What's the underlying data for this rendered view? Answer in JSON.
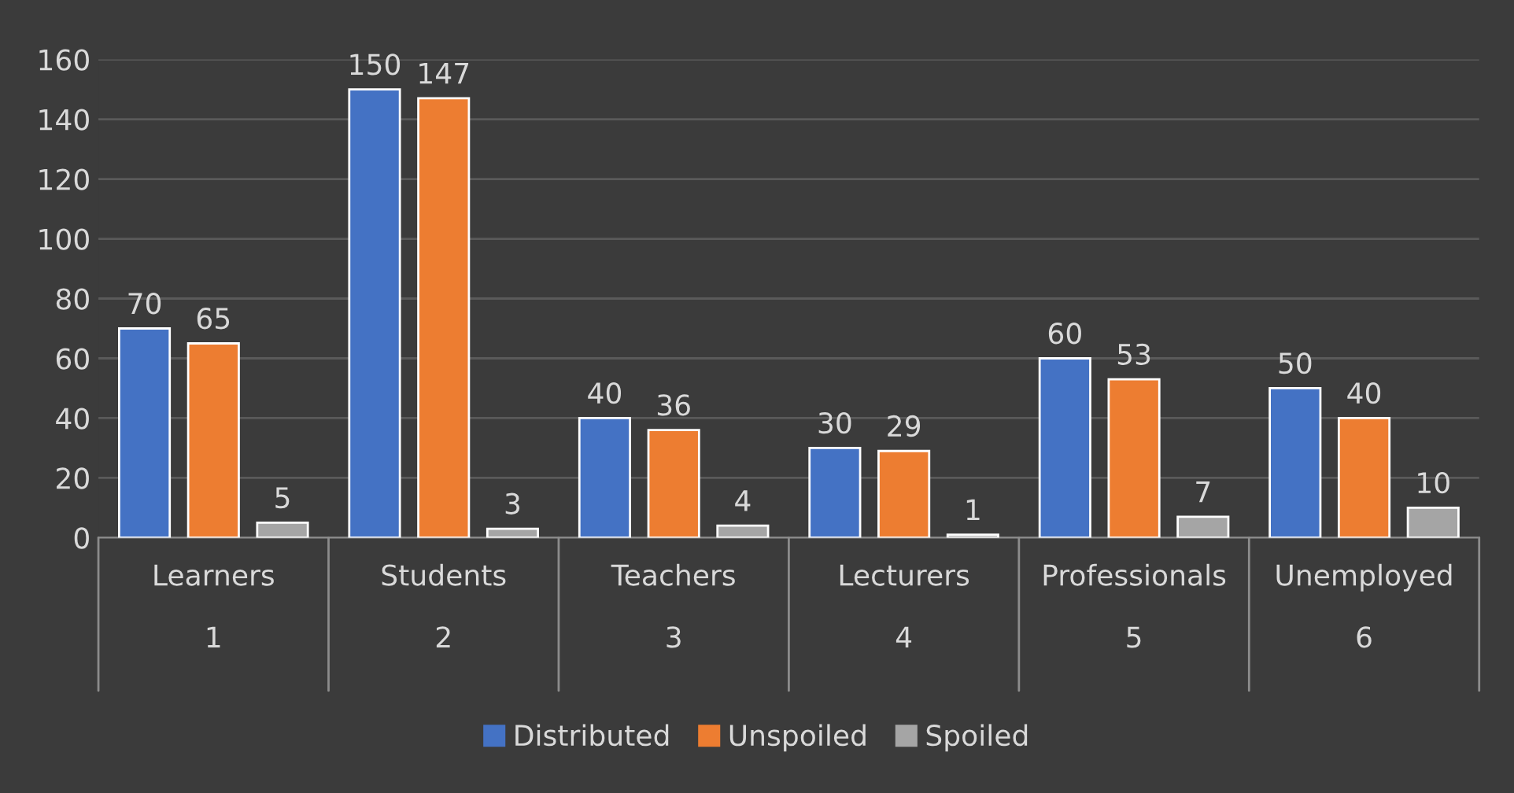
{
  "chart_data": {
    "type": "bar",
    "categories": [
      "Learners\n1",
      "Students\n2",
      "Teachers\n3",
      "Lecturers\n4",
      "Professionals\n5",
      "Unemployed\n6"
    ],
    "series": [
      {
        "name": "Distributed",
        "color": "#4472c4",
        "values": [
          70,
          150,
          40,
          30,
          60,
          50
        ]
      },
      {
        "name": "Unspoiled",
        "color": "#ed7d31",
        "values": [
          65,
          147,
          36,
          29,
          53,
          40
        ]
      },
      {
        "name": "Spoiled",
        "color": "#a5a5a5",
        "values": [
          5,
          3,
          4,
          1,
          7,
          10
        ]
      }
    ],
    "ylim": [
      0,
      160
    ],
    "yticks": [
      0,
      20,
      40,
      60,
      80,
      100,
      120,
      140,
      160
    ],
    "grid": "y",
    "legend": "bottom",
    "data_labels": true
  }
}
